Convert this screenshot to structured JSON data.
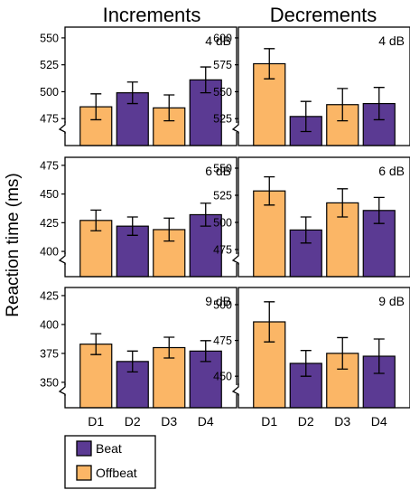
{
  "figure": {
    "column_titles": [
      "Increments",
      "Decrements"
    ],
    "ylabel": "Reaction time (ms)",
    "x_labels": [
      "D1",
      "D2",
      "D3",
      "D4"
    ]
  },
  "legend": {
    "items": [
      {
        "label": "Beat",
        "color": "#5b3a93"
      },
      {
        "label": "Offbeat",
        "color": "#fbb666"
      }
    ]
  },
  "chart_data": [
    {
      "type": "bar",
      "panel": "Increments",
      "level": "4 dB",
      "categories": [
        "D1",
        "D2",
        "D3",
        "D4"
      ],
      "values": [
        486,
        499,
        485,
        511
      ],
      "errors": [
        12,
        10,
        12,
        12
      ],
      "bar_types": [
        "Offbeat",
        "Beat",
        "Offbeat",
        "Beat"
      ],
      "ylim": [
        450,
        560
      ],
      "yticks": [
        475,
        500,
        525,
        550
      ]
    },
    {
      "type": "bar",
      "panel": "Decrements",
      "level": "4 dB",
      "categories": [
        "D1",
        "D2",
        "D3",
        "D4"
      ],
      "values": [
        576,
        527,
        538,
        539
      ],
      "errors": [
        14,
        14,
        15,
        15
      ],
      "bar_types": [
        "Offbeat",
        "Beat",
        "Offbeat",
        "Beat"
      ],
      "ylim": [
        500,
        610
      ],
      "yticks": [
        525,
        550,
        575,
        600
      ]
    },
    {
      "type": "bar",
      "panel": "Increments",
      "level": "6 dB",
      "categories": [
        "D1",
        "D2",
        "D3",
        "D4"
      ],
      "values": [
        427,
        422,
        419,
        432
      ],
      "errors": [
        9,
        8,
        10,
        10
      ],
      "bar_types": [
        "Offbeat",
        "Beat",
        "Offbeat",
        "Beat"
      ],
      "ylim": [
        378,
        482
      ],
      "yticks": [
        400,
        425,
        450,
        475
      ]
    },
    {
      "type": "bar",
      "panel": "Decrements",
      "level": "6 dB",
      "categories": [
        "D1",
        "D2",
        "D3",
        "D4"
      ],
      "values": [
        529,
        493,
        518,
        511
      ],
      "errors": [
        13,
        12,
        13,
        12
      ],
      "bar_types": [
        "Offbeat",
        "Beat",
        "Offbeat",
        "Beat"
      ],
      "ylim": [
        450,
        560
      ],
      "yticks": [
        475,
        500,
        525,
        550
      ]
    },
    {
      "type": "bar",
      "panel": "Increments",
      "level": "9 dB",
      "categories": [
        "D1",
        "D2",
        "D3",
        "D4"
      ],
      "values": [
        383,
        368,
        380,
        377
      ],
      "errors": [
        9,
        9,
        9,
        9
      ],
      "bar_types": [
        "Offbeat",
        "Beat",
        "Offbeat",
        "Beat"
      ],
      "ylim": [
        328,
        432
      ],
      "yticks": [
        350,
        375,
        400,
        425
      ]
    },
    {
      "type": "bar",
      "panel": "Decrements",
      "level": "9 dB",
      "categories": [
        "D1",
        "D2",
        "D3",
        "D4"
      ],
      "values": [
        488,
        459,
        466,
        464
      ],
      "errors": [
        14,
        9,
        11,
        12
      ],
      "bar_types": [
        "Offbeat",
        "Beat",
        "Offbeat",
        "Beat"
      ],
      "ylim": [
        428,
        512
      ],
      "yticks": [
        450,
        475,
        500
      ]
    }
  ]
}
